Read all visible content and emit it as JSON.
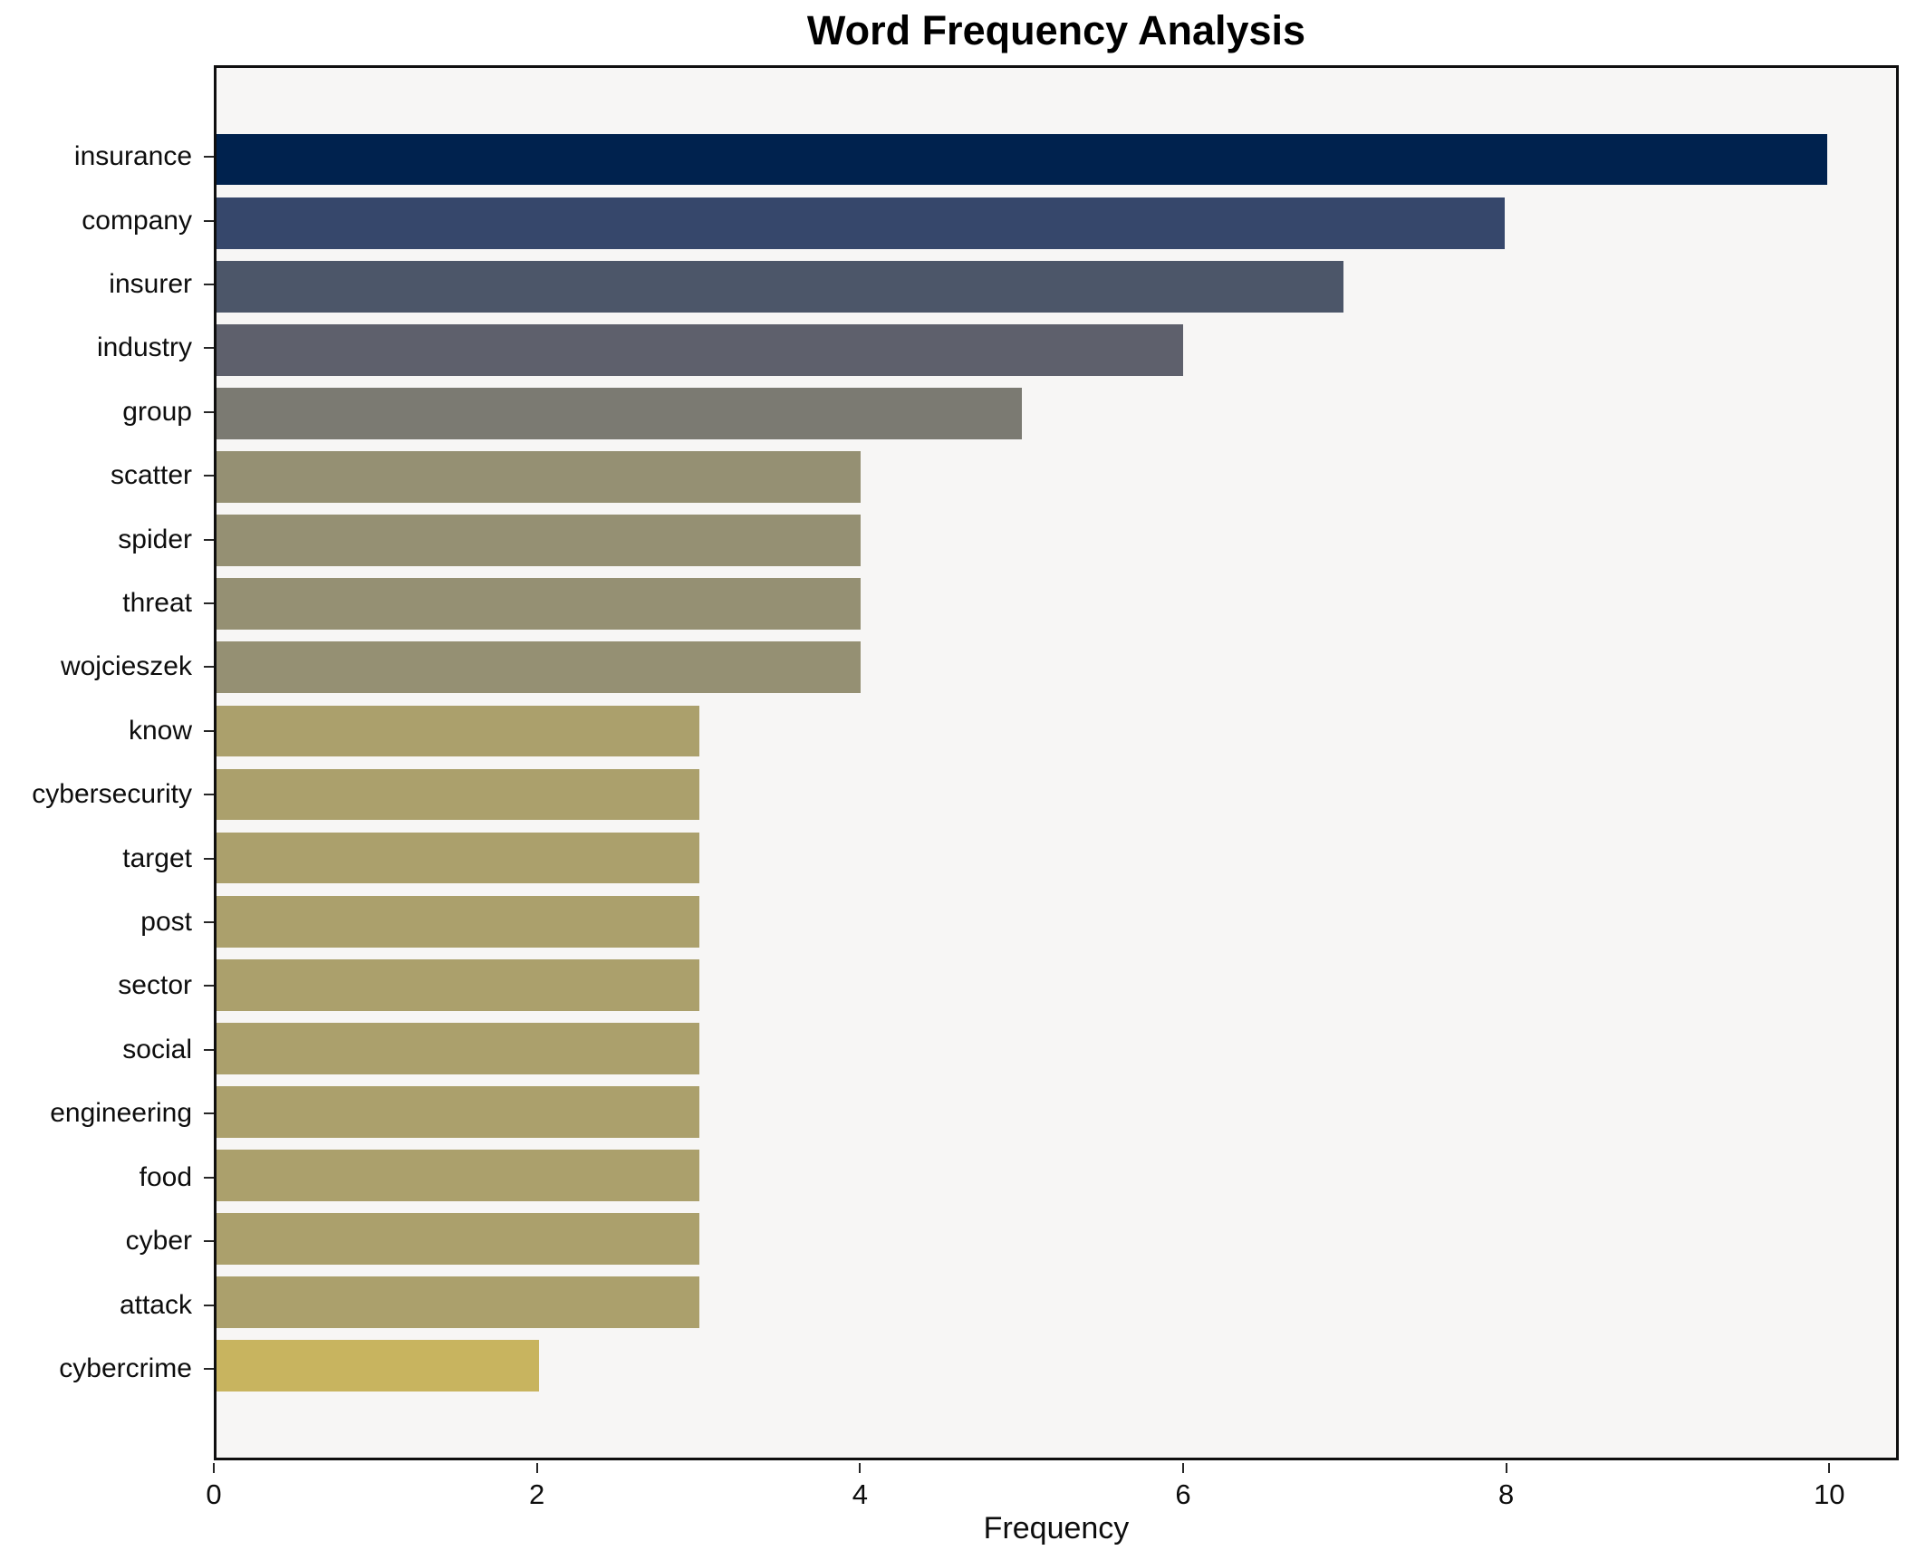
{
  "title": "Word Frequency Analysis",
  "chart_data": {
    "type": "bar",
    "orientation": "horizontal",
    "title": "Word Frequency Analysis",
    "xlabel": "Frequency",
    "ylabel": "",
    "categories": [
      "insurance",
      "company",
      "insurer",
      "industry",
      "group",
      "scatter",
      "spider",
      "threat",
      "wojcieszek",
      "know",
      "cybersecurity",
      "target",
      "post",
      "sector",
      "social",
      "engineering",
      "food",
      "cyber",
      "attack",
      "cybercrime"
    ],
    "values": [
      10,
      8,
      7,
      6,
      5,
      4,
      4,
      4,
      4,
      3,
      3,
      3,
      3,
      3,
      3,
      3,
      3,
      3,
      3,
      2
    ],
    "bar_colors": [
      "#00224e",
      "#36476b",
      "#4c5669",
      "#5e606c",
      "#7b7a72",
      "#959073",
      "#959073",
      "#959073",
      "#959073",
      "#aba06c",
      "#aba06c",
      "#aba06c",
      "#aba06c",
      "#aba06c",
      "#aba06c",
      "#aba06c",
      "#aba06c",
      "#aba06c",
      "#aba06c",
      "#c8b45f"
    ],
    "xticks": [
      0,
      2,
      4,
      6,
      8,
      10
    ],
    "xlim": [
      0,
      10.43
    ],
    "grid": false,
    "legend": false,
    "plot_background": "#f7f6f5",
    "figure_background": "#ffffff",
    "spine_color": "#0f0f0f",
    "tick_color": "#262626",
    "text_color": "#0d0d0d"
  }
}
